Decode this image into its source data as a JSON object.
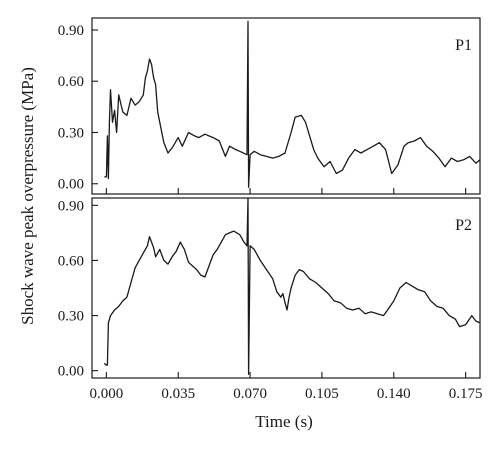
{
  "chart_data": {
    "type": "line",
    "xlabel": "Time (s)",
    "ylabel": "Shock wave peak overpressure (MPa)",
    "xlim": [
      -0.007,
      0.182
    ],
    "x_ticks": [
      0.0,
      0.035,
      0.07,
      0.105,
      0.14,
      0.175
    ],
    "x_tick_labels": [
      "0.000",
      "0.035",
      "0.070",
      "0.105",
      "0.140",
      "0.175"
    ],
    "grid": false,
    "panels": [
      {
        "label": "P1",
        "ylim": [
          -0.06,
          0.97
        ],
        "y_ticks": [
          0.0,
          0.3,
          0.6,
          0.9
        ],
        "y_tick_labels": [
          "0.00",
          "0.30",
          "0.60",
          "0.90"
        ],
        "series": [
          {
            "x": [
              -0.001,
              0.0,
              0.0005,
              0.001,
              0.0015,
              0.002,
              0.003,
              0.004,
              0.005,
              0.006,
              0.008,
              0.01,
              0.012,
              0.014,
              0.016,
              0.018,
              0.019,
              0.02,
              0.021,
              0.022,
              0.023,
              0.024,
              0.025,
              0.027,
              0.028,
              0.03,
              0.032,
              0.035,
              0.037,
              0.04,
              0.043,
              0.045,
              0.048,
              0.052,
              0.055,
              0.058,
              0.06,
              0.063,
              0.065,
              0.0685,
              0.069,
              0.0693,
              0.07,
              0.072,
              0.075,
              0.078,
              0.081,
              0.084,
              0.087,
              0.09,
              0.092,
              0.095,
              0.097,
              0.099,
              0.101,
              0.103,
              0.106,
              0.109,
              0.112,
              0.115,
              0.118,
              0.121,
              0.124,
              0.127,
              0.13,
              0.133,
              0.136,
              0.139,
              0.142,
              0.145,
              0.147,
              0.15,
              0.153,
              0.156,
              0.159,
              0.162,
              0.165,
              0.168,
              0.171,
              0.174,
              0.177,
              0.18,
              0.182
            ],
            "y": [
              0.04,
              0.04,
              0.28,
              0.03,
              0.36,
              0.55,
              0.36,
              0.43,
              0.3,
              0.52,
              0.42,
              0.4,
              0.5,
              0.46,
              0.48,
              0.52,
              0.62,
              0.66,
              0.73,
              0.7,
              0.62,
              0.58,
              0.42,
              0.3,
              0.24,
              0.18,
              0.21,
              0.27,
              0.22,
              0.3,
              0.28,
              0.27,
              0.29,
              0.27,
              0.25,
              0.16,
              0.22,
              0.2,
              0.19,
              0.17,
              0.95,
              -0.02,
              0.17,
              0.19,
              0.17,
              0.16,
              0.15,
              0.16,
              0.18,
              0.3,
              0.39,
              0.4,
              0.36,
              0.28,
              0.2,
              0.15,
              0.1,
              0.13,
              0.06,
              0.08,
              0.15,
              0.2,
              0.18,
              0.2,
              0.22,
              0.24,
              0.2,
              0.06,
              0.11,
              0.22,
              0.24,
              0.25,
              0.27,
              0.22,
              0.19,
              0.15,
              0.1,
              0.15,
              0.13,
              0.14,
              0.16,
              0.12,
              0.14
            ]
          }
        ]
      },
      {
        "label": "P2",
        "ylim": [
          -0.04,
          0.94
        ],
        "y_ticks": [
          0.0,
          0.3,
          0.6,
          0.9
        ],
        "y_tick_labels": [
          "0.00",
          "0.30",
          "0.60",
          "0.90"
        ],
        "series": [
          {
            "x": [
              -0.001,
              0.0,
              0.0005,
              0.001,
              0.002,
              0.004,
              0.006,
              0.008,
              0.01,
              0.012,
              0.014,
              0.016,
              0.018,
              0.02,
              0.021,
              0.022,
              0.023,
              0.024,
              0.026,
              0.028,
              0.03,
              0.032,
              0.034,
              0.036,
              0.038,
              0.04,
              0.042,
              0.044,
              0.046,
              0.048,
              0.05,
              0.052,
              0.054,
              0.056,
              0.058,
              0.06,
              0.062,
              0.065,
              0.067,
              0.0685,
              0.069,
              0.0693,
              0.07,
              0.072,
              0.075,
              0.078,
              0.081,
              0.083,
              0.085,
              0.086,
              0.087,
              0.088,
              0.089,
              0.09,
              0.092,
              0.094,
              0.096,
              0.099,
              0.102,
              0.105,
              0.108,
              0.111,
              0.114,
              0.117,
              0.12,
              0.123,
              0.126,
              0.129,
              0.132,
              0.135,
              0.137,
              0.14,
              0.143,
              0.146,
              0.149,
              0.152,
              0.155,
              0.158,
              0.161,
              0.164,
              0.167,
              0.17,
              0.172,
              0.175,
              0.178,
              0.18,
              0.182
            ],
            "y": [
              0.04,
              0.03,
              0.03,
              0.26,
              0.3,
              0.33,
              0.35,
              0.38,
              0.4,
              0.48,
              0.56,
              0.6,
              0.64,
              0.68,
              0.73,
              0.7,
              0.67,
              0.62,
              0.66,
              0.6,
              0.58,
              0.62,
              0.65,
              0.7,
              0.66,
              0.59,
              0.57,
              0.55,
              0.52,
              0.51,
              0.57,
              0.63,
              0.66,
              0.7,
              0.74,
              0.75,
              0.76,
              0.74,
              0.7,
              0.68,
              0.94,
              -0.02,
              0.68,
              0.66,
              0.6,
              0.55,
              0.5,
              0.43,
              0.4,
              0.42,
              0.37,
              0.33,
              0.4,
              0.45,
              0.52,
              0.55,
              0.54,
              0.5,
              0.48,
              0.45,
              0.42,
              0.38,
              0.37,
              0.34,
              0.33,
              0.34,
              0.31,
              0.32,
              0.31,
              0.3,
              0.33,
              0.38,
              0.45,
              0.48,
              0.46,
              0.44,
              0.43,
              0.38,
              0.35,
              0.34,
              0.3,
              0.28,
              0.24,
              0.25,
              0.3,
              0.27,
              0.26
            ]
          }
        ]
      }
    ]
  }
}
